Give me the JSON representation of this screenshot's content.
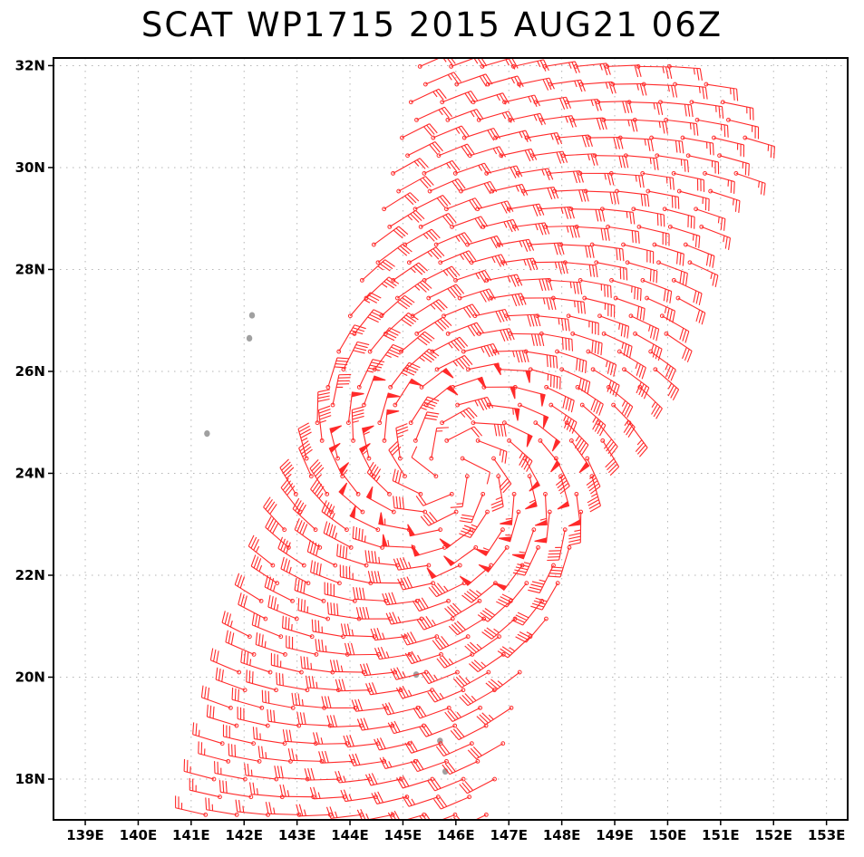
{
  "title": "SCAT WP1715 2015 AUG21 06Z",
  "colors": {
    "wind_barb": "#ff2a2a",
    "land": "#a0a0a0",
    "grid": "#b5b5b5",
    "frame": "#000000",
    "background": "#ffffff"
  },
  "map": {
    "lon_range": [
      138.4,
      153.4
    ],
    "lat_range": [
      17.2,
      32.15
    ],
    "grid_lines": "dotted",
    "lon_labels": [
      "139E",
      "140E",
      "141E",
      "142E",
      "143E",
      "144E",
      "145E",
      "146E",
      "147E",
      "148E",
      "149E",
      "150E",
      "151E",
      "152E",
      "153E"
    ],
    "lat_labels": [
      "18N",
      "20N",
      "22N",
      "24N",
      "26N",
      "28N",
      "30N",
      "32N"
    ],
    "islands": [
      {
        "name": "",
        "lon": 142.15,
        "lat": 27.1
      },
      {
        "name": "",
        "lon": 142.1,
        "lat": 26.65
      },
      {
        "name": "",
        "lon": 141.3,
        "lat": 24.78
      },
      {
        "name": "",
        "lon": 145.7,
        "lat": 18.75
      },
      {
        "name": "",
        "lon": 145.8,
        "lat": 18.15
      },
      {
        "name": "",
        "lon": 145.25,
        "lat": 20.05
      }
    ]
  },
  "wind_field": {
    "type": "scatterometer_wind_barbs",
    "storm_center": {
      "lon": 145.9,
      "lat": 24.1
    },
    "swath_west_edge": [
      [
        141.1,
        17.2
      ],
      [
        141.8,
        20.3
      ],
      [
        142.8,
        23.5
      ],
      [
        143.7,
        26.6
      ],
      [
        144.4,
        28.8
      ],
      [
        145.2,
        32.1
      ]
    ],
    "swath_east_edge": [
      [
        146.7,
        17.2
      ],
      [
        147.3,
        19.6
      ],
      [
        148.2,
        22.3
      ],
      [
        149.1,
        24.3
      ],
      [
        150.3,
        26.6
      ],
      [
        151.0,
        28.6
      ],
      [
        151.8,
        30.8
      ],
      [
        150.3,
        32.1
      ]
    ],
    "spacing_deg": 0.38,
    "max_speed_kt": 55
  }
}
